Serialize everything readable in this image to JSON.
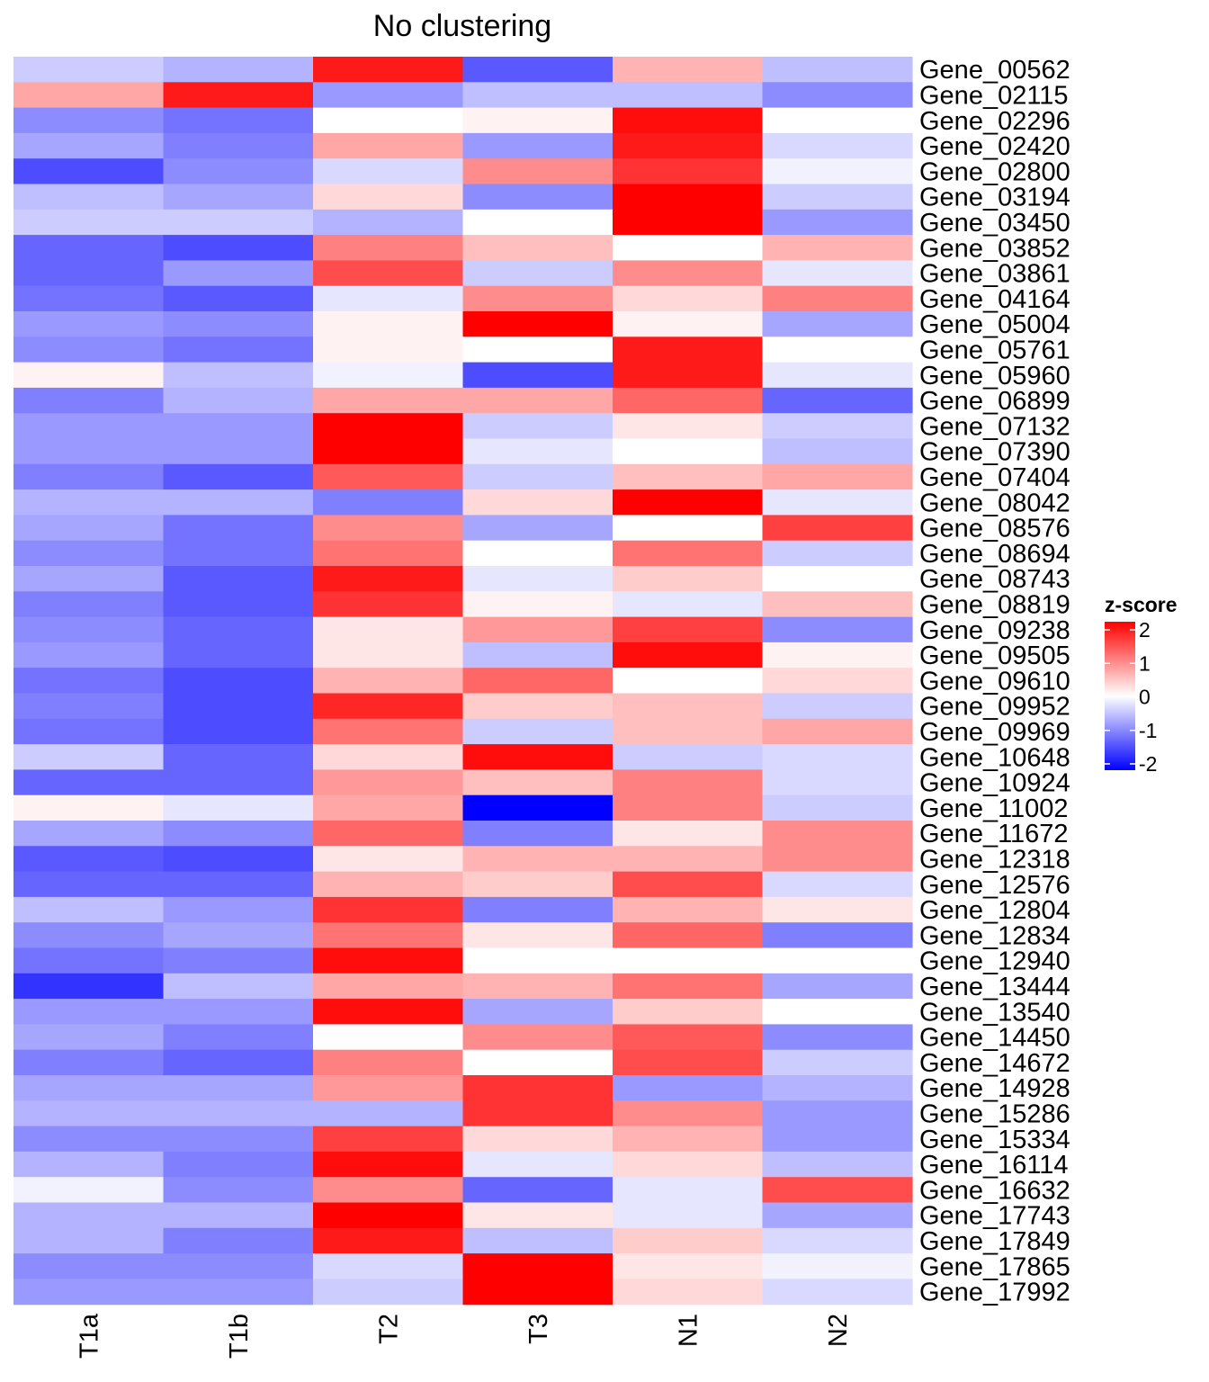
{
  "chart_data": {
    "type": "heatmap",
    "title": "No clustering",
    "columns": [
      "T1a",
      "T1b",
      "T2",
      "T3",
      "N1",
      "N2"
    ],
    "rows": [
      "Gene_00562",
      "Gene_02115",
      "Gene_02296",
      "Gene_02420",
      "Gene_02800",
      "Gene_03194",
      "Gene_03450",
      "Gene_03852",
      "Gene_03861",
      "Gene_04164",
      "Gene_05004",
      "Gene_05761",
      "Gene_05960",
      "Gene_06899",
      "Gene_07132",
      "Gene_07390",
      "Gene_07404",
      "Gene_08042",
      "Gene_08576",
      "Gene_08694",
      "Gene_08743",
      "Gene_08819",
      "Gene_09238",
      "Gene_09505",
      "Gene_09610",
      "Gene_09952",
      "Gene_09969",
      "Gene_10648",
      "Gene_10924",
      "Gene_11002",
      "Gene_11672",
      "Gene_12318",
      "Gene_12576",
      "Gene_12804",
      "Gene_12834",
      "Gene_12940",
      "Gene_13444",
      "Gene_13540",
      "Gene_14450",
      "Gene_14672",
      "Gene_14928",
      "Gene_15286",
      "Gene_15334",
      "Gene_16114",
      "Gene_16632",
      "Gene_17743",
      "Gene_17849",
      "Gene_17865",
      "Gene_17992"
    ],
    "values": [
      [
        -0.4,
        -0.6,
        1.8,
        -1.3,
        0.6,
        -0.5
      ],
      [
        0.7,
        1.8,
        -0.8,
        -0.5,
        -0.5,
        -0.9
      ],
      [
        -0.9,
        -1.1,
        0.0,
        0.1,
        1.9,
        0.0
      ],
      [
        -0.7,
        -1.0,
        0.7,
        -0.8,
        1.8,
        -0.3
      ],
      [
        -1.4,
        -0.9,
        -0.3,
        0.9,
        1.6,
        -0.1
      ],
      [
        -0.5,
        -0.7,
        0.3,
        -0.9,
        2.0,
        -0.4
      ],
      [
        -0.4,
        -0.4,
        -0.6,
        0.0,
        2.3,
        -0.8
      ],
      [
        -1.2,
        -1.4,
        1.0,
        0.5,
        0.0,
        0.6
      ],
      [
        -1.2,
        -0.8,
        1.4,
        -0.4,
        0.9,
        -0.2
      ],
      [
        -1.1,
        -1.3,
        -0.2,
        0.9,
        0.3,
        1.0
      ],
      [
        -0.8,
        -0.9,
        0.1,
        2.1,
        0.1,
        -0.7
      ],
      [
        -0.9,
        -1.1,
        0.1,
        0.0,
        1.8,
        0.0
      ],
      [
        0.1,
        -0.5,
        -0.1,
        -1.4,
        1.8,
        -0.2
      ],
      [
        -1.0,
        -0.6,
        0.7,
        0.7,
        1.2,
        -1.2
      ],
      [
        -0.8,
        -0.8,
        2.1,
        -0.4,
        0.2,
        -0.4
      ],
      [
        -0.8,
        -0.8,
        2.3,
        -0.2,
        0.0,
        -0.5
      ],
      [
        -1.0,
        -1.3,
        1.3,
        -0.4,
        0.5,
        0.7
      ],
      [
        -0.6,
        -0.6,
        -1.0,
        0.3,
        2.0,
        -0.2
      ],
      [
        -0.7,
        -1.1,
        0.9,
        -0.7,
        0.0,
        1.5
      ],
      [
        -0.9,
        -1.1,
        1.1,
        0.0,
        1.1,
        -0.4
      ],
      [
        -0.7,
        -1.3,
        1.8,
        -0.2,
        0.4,
        0.0
      ],
      [
        -1.0,
        -1.3,
        1.6,
        0.1,
        -0.2,
        0.5
      ],
      [
        -0.9,
        -1.2,
        0.2,
        0.8,
        1.5,
        -0.9
      ],
      [
        -0.8,
        -1.2,
        0.2,
        -0.5,
        1.9,
        0.1
      ],
      [
        -1.1,
        -1.4,
        0.6,
        1.2,
        0.0,
        0.3
      ],
      [
        -1.0,
        -1.4,
        1.7,
        0.4,
        0.5,
        -0.4
      ],
      [
        -1.1,
        -1.4,
        1.1,
        -0.4,
        0.5,
        0.7
      ],
      [
        -0.4,
        -1.2,
        0.3,
        1.9,
        -0.4,
        -0.3
      ],
      [
        -1.2,
        -1.2,
        0.8,
        0.5,
        1.0,
        -0.3
      ],
      [
        0.1,
        -0.2,
        0.7,
        -2.0,
        1.0,
        -0.4
      ],
      [
        -0.7,
        -0.9,
        1.2,
        -1.0,
        0.2,
        0.9
      ],
      [
        -1.3,
        -1.4,
        0.2,
        0.6,
        0.6,
        0.9
      ],
      [
        -1.2,
        -1.2,
        0.6,
        0.4,
        1.4,
        -0.3
      ],
      [
        -0.5,
        -0.8,
        1.6,
        -1.0,
        0.6,
        0.2
      ],
      [
        -0.9,
        -0.7,
        1.1,
        0.2,
        1.2,
        -1.0
      ],
      [
        -1.1,
        -1.0,
        1.9,
        0.0,
        0.0,
        0.0
      ],
      [
        -1.6,
        -0.5,
        0.7,
        0.6,
        1.1,
        -0.7
      ],
      [
        -0.8,
        -0.8,
        1.9,
        -0.7,
        0.4,
        0.0
      ],
      [
        -0.7,
        -1.0,
        0.0,
        0.9,
        1.3,
        -0.9
      ],
      [
        -1.0,
        -1.2,
        1.0,
        0.0,
        1.4,
        -0.4
      ],
      [
        -0.7,
        -0.7,
        0.8,
        1.6,
        -0.8,
        -0.6
      ],
      [
        -0.6,
        -0.6,
        -0.6,
        1.6,
        0.9,
        -0.8
      ],
      [
        -0.9,
        -0.9,
        1.5,
        0.3,
        0.6,
        -0.8
      ],
      [
        -0.6,
        -1.0,
        1.9,
        -0.2,
        0.3,
        -0.5
      ],
      [
        -0.1,
        -0.9,
        0.9,
        -1.2,
        -0.2,
        1.4
      ],
      [
        -0.6,
        -0.6,
        2.3,
        0.2,
        -0.2,
        -0.7
      ],
      [
        -0.6,
        -1.0,
        1.8,
        -0.5,
        0.4,
        -0.3
      ],
      [
        -0.9,
        -0.9,
        -0.3,
        2.0,
        0.2,
        -0.1
      ],
      [
        -0.8,
        -0.8,
        -0.4,
        2.0,
        0.3,
        -0.3
      ]
    ],
    "legend": {
      "title": "z-score",
      "ticks": [
        "2",
        "1",
        "0",
        "-1",
        "-2"
      ],
      "colors": {
        "low": "#0000ff",
        "mid": "#ffffff",
        "high": "#ff0000"
      },
      "range": [
        -2,
        2
      ]
    }
  }
}
